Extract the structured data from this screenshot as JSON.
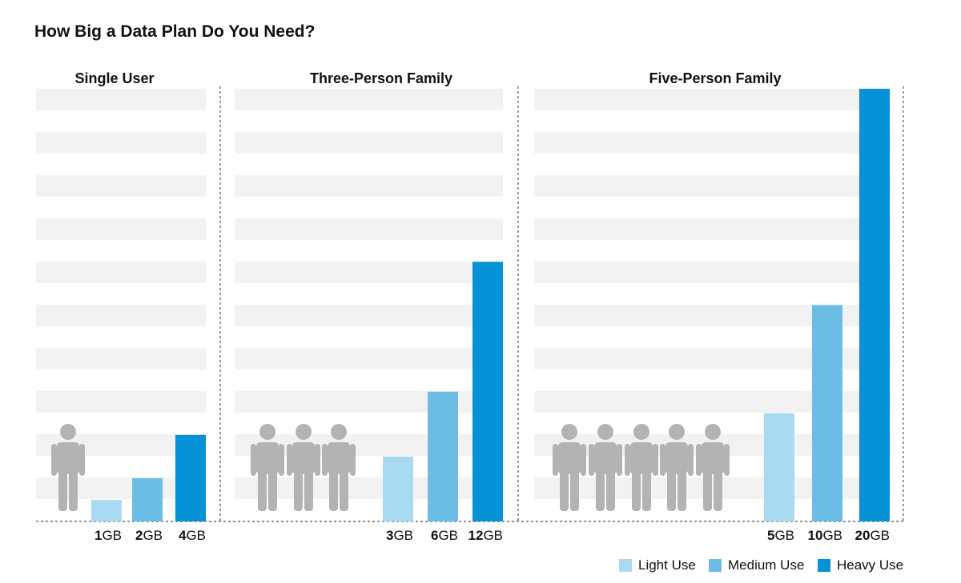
{
  "title": "How Big a Data Plan Do You Need?",
  "colors": {
    "light": "#a9daf1",
    "medium": "#6bbde6",
    "heavy": "#0692d6",
    "band": "#f2f2f2",
    "person": "#b3b3b3",
    "divider": "#555555"
  },
  "legend": [
    {
      "key": "light",
      "label": "Light Use"
    },
    {
      "key": "medium",
      "label": "Medium Use"
    },
    {
      "key": "heavy",
      "label": "Heavy Use"
    }
  ],
  "chart_data": {
    "type": "bar",
    "unit": "GB",
    "ylim": [
      0,
      20
    ],
    "grid": true,
    "legend_position": "bottom-right",
    "panels": [
      {
        "title": "Single User",
        "people": 1,
        "bars": [
          {
            "use": "light",
            "value": 1
          },
          {
            "use": "medium",
            "value": 2
          },
          {
            "use": "heavy",
            "value": 4
          }
        ]
      },
      {
        "title": "Three-Person Family",
        "people": 3,
        "bars": [
          {
            "use": "light",
            "value": 3
          },
          {
            "use": "medium",
            "value": 6
          },
          {
            "use": "heavy",
            "value": 12
          }
        ]
      },
      {
        "title": "Five-Person Family",
        "people": 5,
        "bars": [
          {
            "use": "light",
            "value": 5
          },
          {
            "use": "medium",
            "value": 10
          },
          {
            "use": "heavy",
            "value": 20
          }
        ]
      }
    ]
  }
}
